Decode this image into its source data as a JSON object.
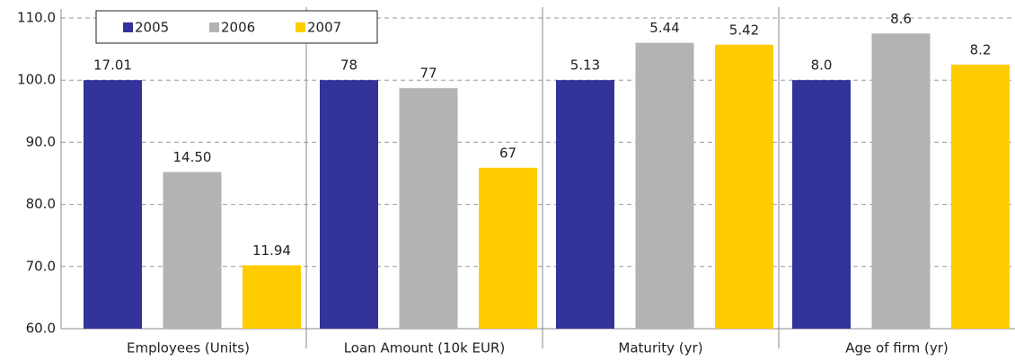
{
  "chart_data": {
    "type": "bar",
    "categories": [
      "Employees (Units)",
      "Loan Amount (10k EUR)",
      "Maturity (yr)",
      "Age of firm (yr)"
    ],
    "series": [
      {
        "name": "2005",
        "color": "#333399",
        "values": [
          100,
          100,
          100,
          100
        ],
        "value_labels": [
          "17.01",
          "78",
          "5.13",
          "8.0"
        ]
      },
      {
        "name": "2006",
        "color": "#b3b3b3",
        "values": [
          85.2,
          98.7,
          106.0,
          107.5
        ],
        "value_labels": [
          "14.50",
          "77",
          "5.44",
          "8.6"
        ]
      },
      {
        "name": "2007",
        "color": "#ffcc00",
        "values": [
          70.2,
          85.9,
          105.7,
          102.5
        ],
        "value_labels": [
          "11.94",
          "67",
          "5.42",
          "8.2"
        ]
      }
    ],
    "ylim": [
      60,
      110
    ],
    "yticks": [
      {
        "value": 60,
        "label": "60.0"
      },
      {
        "value": 70,
        "label": "70.0"
      },
      {
        "value": 80,
        "label": "80.0"
      },
      {
        "value": 90,
        "label": "90.0"
      },
      {
        "value": 100,
        "label": "100.0"
      },
      {
        "value": 110,
        "label": "110.0"
      }
    ],
    "grid": true,
    "legend": "top-left"
  }
}
